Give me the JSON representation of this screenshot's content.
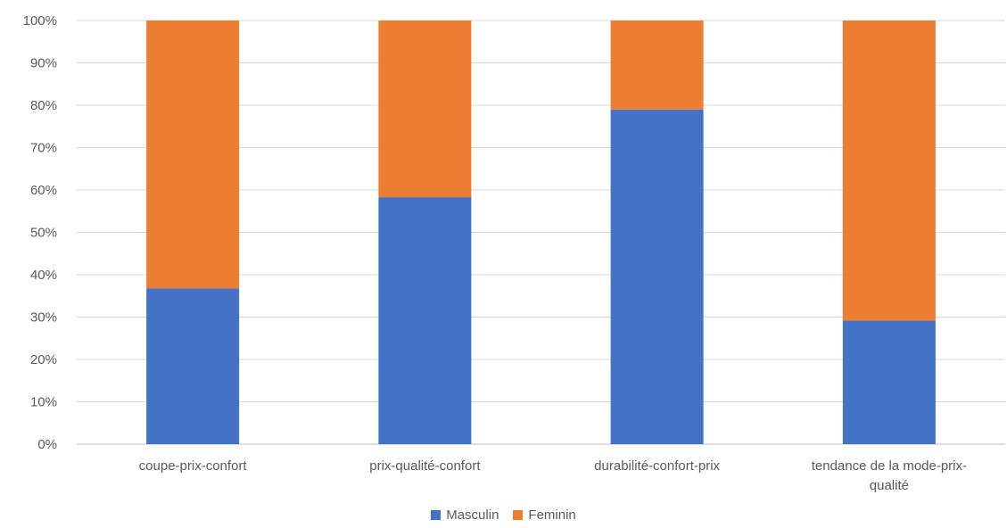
{
  "chart_data": {
    "type": "bar",
    "stacked": true,
    "normalized": true,
    "categories": [
      [
        "coupe-prix-confort"
      ],
      [
        "prix-qualité-confort"
      ],
      [
        "durabilité-confort-prix"
      ],
      [
        "tendance de la mode-prix-",
        "qualité"
      ]
    ],
    "series": [
      {
        "name": "Masculin",
        "color": "#4472C4",
        "values": [
          36.8,
          58.3,
          79.0,
          29.2
        ]
      },
      {
        "name": "Feminin",
        "color": "#ED7D31",
        "values": [
          63.2,
          41.7,
          21.0,
          70.8
        ]
      }
    ],
    "ylim": [
      0,
      100
    ],
    "yticks": [
      "0%",
      "10%",
      "20%",
      "30%",
      "40%",
      "50%",
      "60%",
      "70%",
      "80%",
      "90%",
      "100%"
    ],
    "grid": true,
    "legend_position": "bottom"
  }
}
